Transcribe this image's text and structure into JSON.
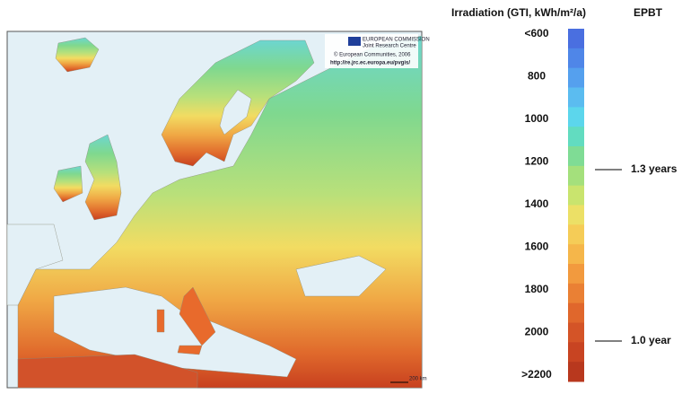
{
  "legend": {
    "title": "Irradiation (GTI,  kWh/m²/a)",
    "labels": [
      "<600",
      "800",
      "1000",
      "1200",
      "1400",
      "1600",
      "1800",
      "2000",
      ">2200"
    ]
  },
  "epbt": {
    "title": "EPBT",
    "markers": [
      "1.3 years",
      "1.0 year"
    ]
  },
  "map": {
    "agency": "EUROPEAN COMMISSION",
    "centre": "Joint Research Centre",
    "copyright": "© European Communities, 2006",
    "url": "http://re.jrc.ec.europa.eu/pvgis/",
    "scale": "200 km"
  }
}
